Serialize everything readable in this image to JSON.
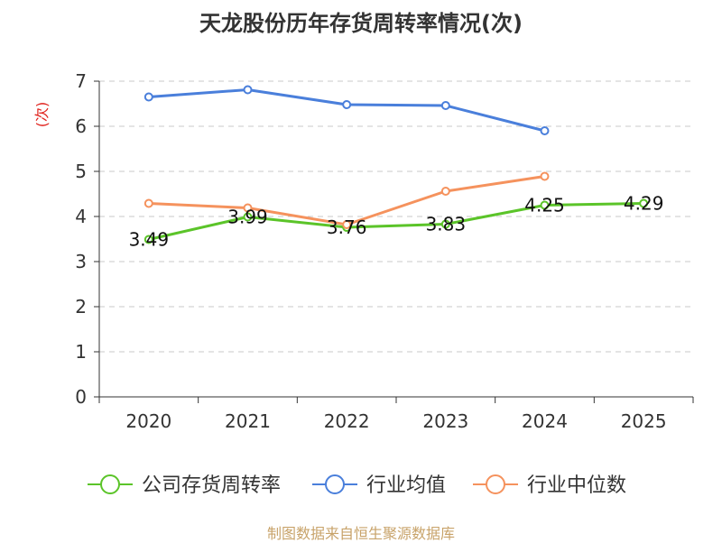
{
  "title": "天龙股份历年存货周转率情况(次)",
  "source": "制图数据来自恒生聚源数据库",
  "chart_data": {
    "type": "line",
    "title": "天龙股份历年存货周转率情况(次)",
    "xlabel": "",
    "ylabel": "(次)",
    "categories": [
      "2020",
      "2021",
      "2022",
      "2023",
      "2024",
      "2025"
    ],
    "ylim": [
      0,
      7
    ],
    "yticks": [
      0,
      1,
      2,
      3,
      4,
      5,
      6,
      7
    ],
    "grid": true,
    "legend_position": "bottom",
    "series": [
      {
        "name": "公司存货周转率",
        "color": "#5bc429",
        "values": [
          3.49,
          3.99,
          3.76,
          3.83,
          4.25,
          4.29
        ],
        "show_labels": true
      },
      {
        "name": "行业均值",
        "color": "#4a7fdb",
        "values": [
          6.65,
          6.81,
          6.48,
          6.46,
          5.9,
          null
        ],
        "show_labels": false
      },
      {
        "name": "行业中位数",
        "color": "#f5925d",
        "values": [
          4.29,
          4.19,
          3.82,
          4.56,
          4.89,
          null
        ],
        "show_labels": false
      }
    ]
  }
}
